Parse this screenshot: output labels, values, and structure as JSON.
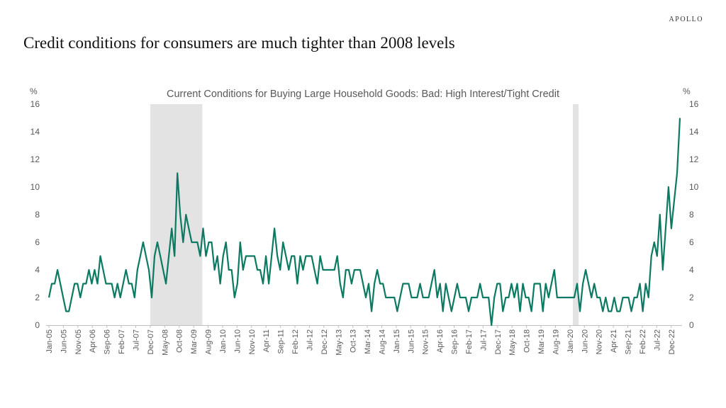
{
  "brand": "APOLLO",
  "headline": "Credit conditions for consumers are much tighter than 2008 levels",
  "colors": {
    "line": "#0c7a62",
    "recession": "#e3e3e3",
    "text": "#595959"
  },
  "chart_data": {
    "type": "line",
    "title": "Current Conditions for Buying Large Household Goods: Bad: High Interest/Tight Credit",
    "y_unit_left": "%",
    "y_unit_right": "%",
    "ylim": [
      0,
      16
    ],
    "yticks": [
      0,
      2,
      4,
      6,
      8,
      10,
      12,
      14,
      16
    ],
    "x_start": "Jan-05",
    "x_end": "Mar-23",
    "xtick_labels": [
      "Jan-05",
      "Jun-05",
      "Nov-05",
      "Apr-06",
      "Sep-06",
      "Feb-07",
      "Jul-07",
      "Dec-07",
      "May-08",
      "Oct-08",
      "Mar-09",
      "Aug-09",
      "Jan-10",
      "Jun-10",
      "Nov-10",
      "Apr-11",
      "Sep-11",
      "Feb-12",
      "Jul-12",
      "Dec-12",
      "May-13",
      "Oct-13",
      "Mar-14",
      "Aug-14",
      "Jan-15",
      "Jun-15",
      "Nov-15",
      "Apr-16",
      "Sep-16",
      "Feb-17",
      "Jul-17",
      "Dec-17",
      "May-18",
      "Oct-18",
      "Mar-19",
      "Aug-19",
      "Jan-20",
      "Jun-20",
      "Nov-20",
      "Apr-21",
      "Sep-21",
      "Feb-22",
      "Jul-22",
      "Dec-22"
    ],
    "shaded_periods": [
      [
        "Dec-07",
        "Jun-09"
      ],
      [
        "Feb-20",
        "Apr-20"
      ]
    ],
    "grid": false,
    "legend": "none",
    "series": [
      {
        "values": [
          2,
          3,
          3,
          4,
          3,
          2,
          1,
          1,
          2,
          3,
          3,
          2,
          3,
          3,
          4,
          3,
          4,
          3,
          5,
          4,
          3,
          3,
          3,
          2,
          3,
          2,
          3,
          4,
          3,
          3,
          2,
          4,
          5,
          6,
          5,
          4,
          2,
          5,
          6,
          5,
          4,
          3,
          5,
          7,
          5,
          11,
          8,
          6,
          8,
          7,
          6,
          6,
          6,
          5,
          7,
          5,
          6,
          6,
          4,
          5,
          3,
          5,
          6,
          4,
          4,
          2,
          3,
          6,
          4,
          5,
          5,
          5,
          5,
          4,
          4,
          3,
          5,
          3,
          5,
          7,
          5,
          4,
          6,
          5,
          4,
          5,
          5,
          3,
          5,
          4,
          5,
          5,
          5,
          4,
          3,
          5,
          4,
          4,
          4,
          4,
          4,
          5,
          3,
          2,
          4,
          4,
          3,
          4,
          4,
          4,
          3,
          2,
          3,
          1,
          3,
          4,
          3,
          3,
          2,
          2,
          2,
          2,
          1,
          2,
          3,
          3,
          3,
          2,
          2,
          2,
          3,
          2,
          2,
          2,
          3,
          4,
          2,
          3,
          1,
          3,
          2,
          1,
          2,
          3,
          2,
          2,
          2,
          1,
          2,
          2,
          2,
          3,
          2,
          2,
          2,
          0,
          2,
          3,
          3,
          1,
          2,
          2,
          3,
          2,
          3,
          1,
          3,
          2,
          2,
          1,
          3,
          3,
          3,
          1,
          3,
          2,
          3,
          4,
          2,
          2,
          2,
          2,
          2,
          2,
          2,
          3,
          1,
          3,
          4,
          3,
          2,
          3,
          2,
          2,
          1,
          2,
          1,
          1,
          2,
          1,
          1,
          2,
          2,
          2,
          1,
          2,
          2,
          3,
          1,
          3,
          2,
          5,
          6,
          5,
          8,
          4,
          7,
          10,
          7,
          9,
          11,
          15
        ]
      }
    ]
  }
}
